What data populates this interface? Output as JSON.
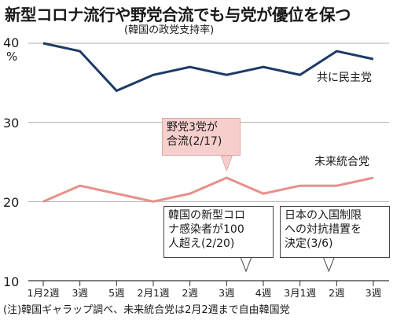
{
  "header": {
    "title": "新型コロナ流行や野党合流でも与党が優位を保つ",
    "subtitle": "(韓国の政党支持率)"
  },
  "note": "(注)韓国ギャラップ調べ、未来統合党は2月2週まで自由韓国党",
  "colors": {
    "ruling": "#1c3a66",
    "opposition": "#e8908c",
    "grid": "#b0b0b0"
  },
  "chart_data": {
    "type": "line",
    "title": "新型コロナ流行や野党合流でも与党が優位を保つ",
    "subtitle": "(韓国の政党支持率)",
    "ylabel": "%",
    "ylim": [
      10,
      40
    ],
    "yticks": [
      10,
      20,
      30,
      40
    ],
    "grid": "horizontal",
    "categories": [
      "1月2週",
      "3週",
      "5週",
      "2月1週",
      "2週",
      "3週",
      "4週",
      "3月1週",
      "2週",
      "3週"
    ],
    "x_tick_labels": [
      "1月2週",
      "3週",
      "5週",
      "2月1週",
      "2週",
      "3週",
      "4週",
      "3月1週",
      "2週",
      "3週"
    ],
    "series": [
      {
        "name": "共に民主党",
        "values": [
          40,
          39,
          34,
          36,
          37,
          36,
          37,
          36,
          39,
          38
        ]
      },
      {
        "name": "未来統合党",
        "values": [
          20,
          22,
          21,
          20,
          21,
          23,
          21,
          22,
          22,
          23
        ]
      }
    ],
    "annotations": [
      {
        "text": "野党3党が\n合流(2/17)",
        "category_index": 5,
        "style": "highlight"
      },
      {
        "text": "韓国の新型コロ\nナ感染者が100\n人超え(2/20)",
        "category_index": 6,
        "style": "box"
      },
      {
        "text": "日本の入国制限\nへの対抗措置を\n決定(3/6)",
        "category_index": 8,
        "style": "box"
      }
    ]
  }
}
